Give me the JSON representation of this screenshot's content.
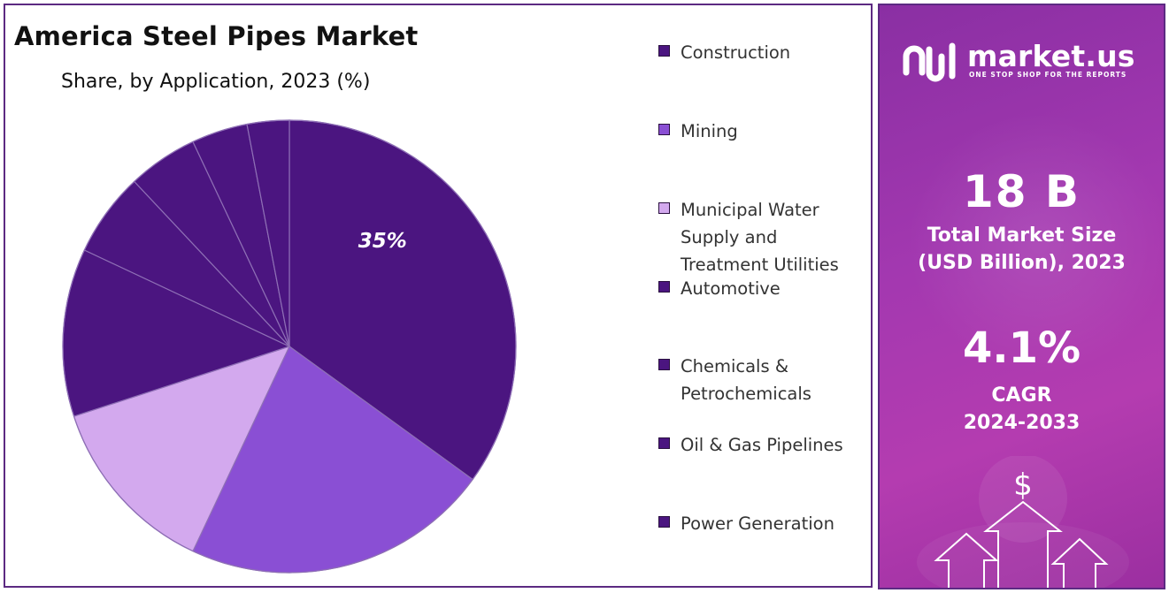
{
  "chart_data": {
    "type": "pie",
    "title": "America Steel Pipes Market",
    "subtitle": "Share, by Application, 2023 (%)",
    "categories": [
      "Construction",
      "Mining",
      "Municipal Water Supply and Treatment Utilities",
      "Automotive",
      "Chemicals & Petrochemicals",
      "Oil & Gas Pipelines",
      "Power Generation"
    ],
    "slices": [
      {
        "name": "Construction",
        "value": 35,
        "label": "35%",
        "color": "#4b1580"
      },
      {
        "name": "Mining",
        "value": 22,
        "color": "#8a4fd4"
      },
      {
        "name": "Municipal Water Supply and Treatment Utilities",
        "value": 13,
        "color": "#d3a9ee"
      },
      {
        "name": "Automotive",
        "value": 12,
        "color": "#4b1580"
      },
      {
        "name": "Chemicals & Petrochemicals",
        "value": 6,
        "color": "#4b1580"
      },
      {
        "name": "Oil & Gas Pipelines",
        "value": 5,
        "color": "#4b1580"
      },
      {
        "name": "Power Generation",
        "value": 4,
        "color": "#4b1580"
      },
      {
        "name": "",
        "value": 3,
        "color": "#4b1580"
      }
    ],
    "legend": {
      "position": "right"
    }
  },
  "legend_items": [
    {
      "label": "Construction",
      "color": "#4b1580"
    },
    {
      "label": "Mining",
      "color": "#8a4fd4"
    },
    {
      "label": "Municipal Water\nSupply and\nTreatment Utilities",
      "color": "#d3a9ee"
    },
    {
      "label": "Automotive",
      "color": "#4b1580"
    },
    {
      "label": "Chemicals &\nPetrochemicals",
      "color": "#4b1580"
    },
    {
      "label": "Oil & Gas Pipelines",
      "color": "#4b1580"
    },
    {
      "label": "Power Generation",
      "color": "#4b1580"
    }
  ],
  "brand": {
    "name": "market.us",
    "tagline": "ONE STOP SHOP FOR THE REPORTS"
  },
  "stats": {
    "market_size_value": "18 B",
    "market_size_label": "Total Market Size\n(USD Billion), 2023",
    "cagr_value": "4.1%",
    "cagr_label": "CAGR\n2024-2033"
  },
  "colors": {
    "panel_border": "#5c2a82",
    "slice_border": "#8e6fb5",
    "side_panel": "#a338b0"
  },
  "icons": [
    "market-us-logo-icon",
    "dollar-icon",
    "up-arrow-icon"
  ]
}
